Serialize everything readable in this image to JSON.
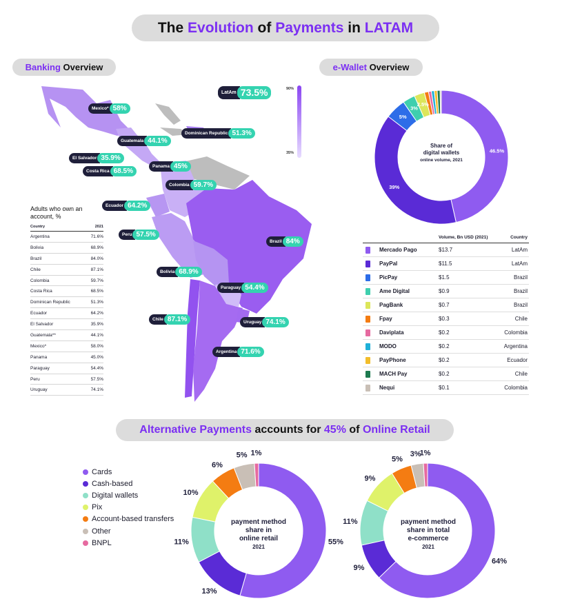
{
  "titles": {
    "main": [
      "The ",
      "Evolution",
      " of ",
      "Payments",
      " in ",
      "LATAM"
    ],
    "banking": [
      "Banking",
      " Overview"
    ],
    "wallet": [
      "e-Wallet",
      " Overview"
    ],
    "alt": [
      "Alternative Payments",
      " accounts for ",
      "45%",
      " of ",
      "Online Retail"
    ]
  },
  "map": {
    "latam": {
      "name": "LatAm",
      "value": "73.5%"
    },
    "scale_max": "90%",
    "scale_min": "35%",
    "tags": [
      {
        "name": "Mexico*",
        "value": "58%"
      },
      {
        "name": "Dominican Republic",
        "value": "51.3%"
      },
      {
        "name": "Guatemala",
        "value": "44.1%"
      },
      {
        "name": "El Salvador",
        "value": "35.9%"
      },
      {
        "name": "Costa Rica",
        "value": "68.5%"
      },
      {
        "name": "Panama",
        "value": "45%"
      },
      {
        "name": "Colombia",
        "value": "59.7%"
      },
      {
        "name": "Ecuador",
        "value": "64.2%"
      },
      {
        "name": "Peru",
        "value": "57.5%"
      },
      {
        "name": "Brazil",
        "value": "84%"
      },
      {
        "name": "Bolivia",
        "value": "68.9%"
      },
      {
        "name": "Paraguay",
        "value": "54.4%"
      },
      {
        "name": "Chile",
        "value": "87.1%"
      },
      {
        "name": "Uruguay",
        "value": "74.1%"
      },
      {
        "name": "Argentina",
        "value": "71.6%"
      }
    ]
  },
  "account_table": {
    "caption": "Adults who own an account, %",
    "col_country": "Country",
    "col_year": "2021",
    "rows": [
      {
        "country": "Argentina",
        "value": "71.6%"
      },
      {
        "country": "Bolivia",
        "value": "68.9%"
      },
      {
        "country": "Brazil",
        "value": "84.0%"
      },
      {
        "country": "Chile",
        "value": "87.1%"
      },
      {
        "country": "Colombia",
        "value": "59.7%"
      },
      {
        "country": "Costa Rica",
        "value": "68.5%"
      },
      {
        "country": "Dominican Republic",
        "value": "51.3%"
      },
      {
        "country": "Ecuador",
        "value": "64.2%"
      },
      {
        "country": "El Salvador",
        "value": "35.9%"
      },
      {
        "country": "Guatemala**",
        "value": "44.1%"
      },
      {
        "country": "Mexico*",
        "value": "58.0%"
      },
      {
        "country": "Panama",
        "value": "45.0%"
      },
      {
        "country": "Paraguay",
        "value": "54.4%"
      },
      {
        "country": "Peru",
        "value": "57.5%"
      },
      {
        "country": "Uruguay",
        "value": "74.1%"
      }
    ]
  },
  "wallet_donut": {
    "center": [
      "Share of",
      "digital wallets",
      "online volume, 2021"
    ],
    "label_color": "#ffffff"
  },
  "wallet_table": {
    "col_volume": "Volume, Bn USD (2021)",
    "col_country": "Country",
    "rows": [
      {
        "name": "Mercado Pago",
        "volume": "$13.7",
        "country": "LatAm",
        "color": "#8f5bf0"
      },
      {
        "name": "PayPal",
        "volume": "$11.5",
        "country": "LatAm",
        "color": "#5a2bd6"
      },
      {
        "name": "PicPay",
        "volume": "$1.5",
        "country": "Brazil",
        "color": "#2d6de8"
      },
      {
        "name": "Ame Digital",
        "volume": "$0.9",
        "country": "Brazil",
        "color": "#3fcfae"
      },
      {
        "name": "PagBank",
        "volume": "$0.7",
        "country": "Brazil",
        "color": "#dce65a"
      },
      {
        "name": "Fpay",
        "volume": "$0.3",
        "country": "Chile",
        "color": "#f47c12"
      },
      {
        "name": "Daviplata",
        "volume": "$0.2",
        "country": "Colombia",
        "color": "#e66aa0"
      },
      {
        "name": "MODO",
        "volume": "$0.2",
        "country": "Argentina",
        "color": "#1fb0d8"
      },
      {
        "name": "PayPhone",
        "volume": "$0.2",
        "country": "Ecuador",
        "color": "#f2bd2b"
      },
      {
        "name": "MACH Pay",
        "volume": "$0.2",
        "country": "Chile",
        "color": "#1d7a4f"
      },
      {
        "name": "Nequi",
        "volume": "$0.1",
        "country": "Colombia",
        "color": "#c9bfb6"
      }
    ]
  },
  "legend": [
    {
      "label": "Cards",
      "color": "#8f5bf0"
    },
    {
      "label": "Cash-based",
      "color": "#5a2bd6"
    },
    {
      "label": "Digital wallets",
      "color": "#8fe0c8"
    },
    {
      "label": "Pix",
      "color": "#dff26a"
    },
    {
      "label": "Account-based transfers",
      "color": "#f47c12"
    },
    {
      "label": "Other",
      "color": "#c9bfb6"
    },
    {
      "label": "BNPL",
      "color": "#e66aa0"
    }
  ],
  "retail_donut": {
    "center": [
      "payment method",
      "share in",
      "online retail"
    ],
    "year": "2021"
  },
  "ecom_donut": {
    "center": [
      "payment method",
      "share in total",
      "e-commerce"
    ],
    "year": "2021"
  },
  "chart_data": [
    {
      "type": "pie",
      "title": "Share of digital wallets online volume, 2021",
      "categories": [
        "Mercado Pago",
        "PayPal",
        "PicPay",
        "Ame Digital",
        "PagBank",
        "Fpay",
        "Daviplata",
        "MODO",
        "PayPhone",
        "MACH Pay",
        "Nequi"
      ],
      "values": [
        46.5,
        39,
        5,
        3,
        2.5,
        1,
        0.7,
        0.7,
        0.7,
        0.7,
        0.3
      ],
      "labels": [
        "46.5%",
        "39%",
        "5%",
        "3%",
        "2.5%",
        "",
        "",
        "",
        "",
        "",
        ""
      ]
    },
    {
      "type": "pie",
      "title": "payment method share in online retail 2021",
      "categories": [
        "Cards",
        "Cash-based",
        "Digital wallets",
        "Pix",
        "Account-based transfers",
        "Other",
        "BNPL"
      ],
      "values": [
        55,
        13,
        11,
        10,
        6,
        5,
        1
      ],
      "labels": [
        "55%",
        "13%",
        "11%",
        "10%",
        "6%",
        "5%",
        "1%"
      ]
    },
    {
      "type": "pie",
      "title": "payment method share in total e-commerce 2021",
      "categories": [
        "Cards",
        "Cash-based",
        "Digital wallets",
        "Pix",
        "Account-based transfers",
        "Other",
        "BNPL"
      ],
      "values": [
        64,
        9,
        11,
        9,
        5,
        3,
        1
      ],
      "labels": [
        "64%",
        "9%",
        "11%",
        "9%",
        "5%",
        "3%",
        "1%"
      ]
    }
  ]
}
